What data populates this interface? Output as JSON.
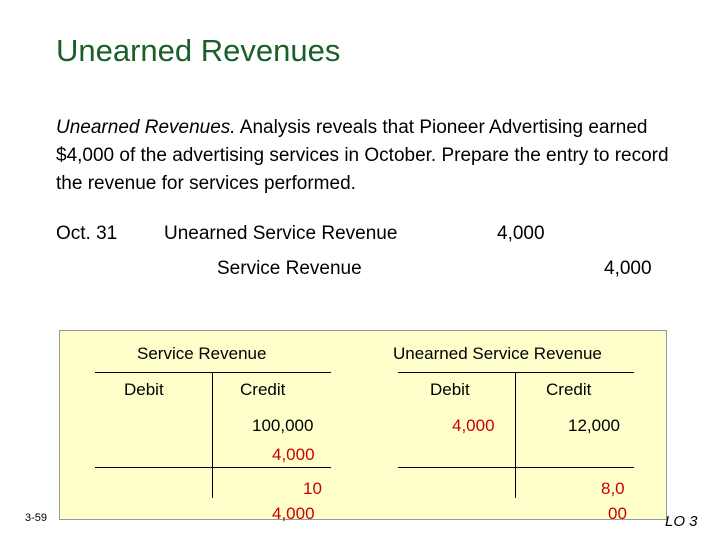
{
  "title": "Unearned Revenues",
  "paragraph": {
    "lead": "Unearned Revenues.",
    "text": " Analysis reveals that Pioneer Advertising earned $4,000 of the advertising services in October. Prepare the entry to record the revenue for services performed."
  },
  "journal_entry": {
    "date": "Oct. 31",
    "debit_account": "Unearned Service Revenue",
    "debit_amount": "4,000",
    "credit_account": "Service Revenue",
    "credit_amount": "4,000"
  },
  "t_accounts": {
    "service_revenue": {
      "title": "Service Revenue",
      "debit_label": "Debit",
      "credit_label": "Credit",
      "credit_line1": "100,000",
      "credit_line2": "4,000",
      "balance_top": "10",
      "balance_bottom": "4,000"
    },
    "unearned_service_revenue": {
      "title": "Unearned Service Revenue",
      "debit_label": "Debit",
      "credit_label": "Credit",
      "debit_entry": "4,000",
      "credit_entry": "12,000",
      "balance_top": "8,0",
      "balance_bottom": "00"
    }
  },
  "slide_number": "3-59",
  "learning_objective": "LO 3"
}
